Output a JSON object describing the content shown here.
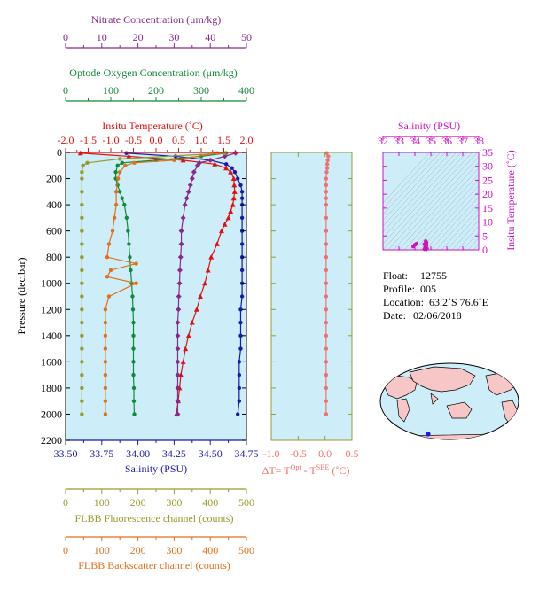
{
  "colors": {
    "plot_bg": "#cdeef8",
    "nitrate": "#882a8a",
    "oxygen": "#13893a",
    "temperature": "#e01010",
    "salinity": "#1a1aa8",
    "fluorescence": "#9a9a2c",
    "backscatter": "#e0701c",
    "delta_t": "#f07070",
    "ts_axis": "#d010c0",
    "land": "#f7c7c7"
  },
  "chart_data": [
    {
      "type": "line",
      "name": "main-profile-panel",
      "ylabel": "Pressure (decibar)",
      "ylim": [
        2200,
        0
      ],
      "y_ticks": [
        "0",
        "200",
        "400",
        "600",
        "800",
        "1000",
        "1200",
        "1400",
        "1600",
        "1800",
        "2000",
        "2200"
      ],
      "axes": {
        "nitrate": {
          "label": "Nitrate Concentration (μm/kg)",
          "range": [
            0,
            50
          ],
          "ticks": [
            "0",
            "10",
            "20",
            "30",
            "40",
            "50"
          ]
        },
        "oxygen": {
          "label": "Optode Oxygen Concentration (μm/kg)",
          "range": [
            0,
            400
          ],
          "ticks": [
            "0",
            "100",
            "200",
            "300",
            "400"
          ]
        },
        "temperature": {
          "label": "Insitu Temperature (˚C)",
          "range": [
            -2.0,
            2.0
          ],
          "ticks": [
            "-2.0",
            "-1.5",
            "-1.0",
            "-0.5",
            "0.0",
            "0.5",
            "1.0",
            "1.5",
            "2.0"
          ]
        },
        "salinity": {
          "label": "Salinity (PSU)",
          "range": [
            33.5,
            34.75
          ],
          "ticks": [
            "33.50",
            "33.75",
            "34.00",
            "34.25",
            "34.50",
            "34.75"
          ]
        },
        "fluorescence": {
          "label": "FLBB Fluorescence channel (counts)",
          "range": [
            0,
            500
          ],
          "ticks": [
            "0",
            "100",
            "200",
            "300",
            "400",
            "500"
          ]
        },
        "backscatter": {
          "label": "FLBB Backscatter channel (counts)",
          "range": [
            0,
            500
          ],
          "ticks": [
            "0",
            "100",
            "200",
            "300",
            "400",
            "500"
          ]
        }
      },
      "series": [
        {
          "axis": "salinity",
          "marker": "circle",
          "pressure": [
            5,
            30,
            60,
            90,
            120,
            150,
            200,
            250,
            300,
            350,
            400,
            500,
            600,
            700,
            800,
            900,
            1000,
            1100,
            1200,
            1300,
            1400,
            1500,
            1600,
            1700,
            1800,
            1900,
            2000
          ],
          "values": [
            33.92,
            34.26,
            34.5,
            34.61,
            34.65,
            34.67,
            34.69,
            34.71,
            34.72,
            34.72,
            34.72,
            34.72,
            34.72,
            34.72,
            34.72,
            34.72,
            34.72,
            34.72,
            34.71,
            34.71,
            34.71,
            34.71,
            34.7,
            34.7,
            34.7,
            34.7,
            34.69
          ]
        },
        {
          "axis": "temperature",
          "marker": "triangle",
          "pressure": [
            5,
            30,
            60,
            90,
            120,
            150,
            200,
            250,
            300,
            350,
            400,
            450,
            500,
            550,
            600,
            700,
            800,
            900,
            1000,
            1100,
            1200,
            1300,
            1400,
            1500,
            1600,
            1700,
            1800,
            1900,
            2000
          ],
          "values": [
            -1.67,
            -0.6,
            0.6,
            1.3,
            1.55,
            1.65,
            1.72,
            1.73,
            1.74,
            1.72,
            1.7,
            1.65,
            1.6,
            1.52,
            1.45,
            1.35,
            1.22,
            1.15,
            1.08,
            0.98,
            0.9,
            0.8,
            0.72,
            0.65,
            0.6,
            0.55,
            0.52,
            0.49,
            0.45
          ]
        },
        {
          "axis": "oxygen",
          "marker": "circle",
          "pressure": [
            5,
            30,
            60,
            80,
            100,
            150,
            200,
            250,
            300,
            350,
            400,
            500,
            600,
            700,
            800,
            900,
            1000,
            1100,
            1200,
            1300,
            1400,
            1500,
            1600,
            1700,
            1800,
            1900,
            2000
          ],
          "values": [
            355,
            300,
            200,
            125,
            115,
            111,
            111,
            115,
            120,
            125,
            130,
            135,
            138,
            140,
            142,
            144,
            146,
            148,
            149,
            150,
            150,
            150,
            150,
            150,
            151,
            151,
            152
          ]
        },
        {
          "axis": "nitrate",
          "marker": "diamond",
          "pressure": [
            5,
            30,
            60,
            80,
            100,
            150,
            200,
            250,
            300,
            350,
            400,
            500,
            600,
            700,
            800,
            900,
            1000,
            1100,
            1200,
            1300,
            1400,
            1500,
            1600,
            1700,
            1800,
            1900,
            2000
          ],
          "values": [
            47,
            44,
            40,
            37,
            36.5,
            35.5,
            35,
            34.5,
            34,
            33.5,
            33,
            32.5,
            32,
            32,
            31.8,
            31.6,
            31.5,
            31.3,
            31.2,
            31,
            31,
            31,
            31,
            31,
            31,
            31,
            31
          ]
        },
        {
          "axis": "fluorescence",
          "marker": "circle",
          "pressure": [
            5,
            50,
            80,
            100,
            150,
            200,
            300,
            400,
            500,
            600,
            700,
            800,
            900,
            1000,
            1100,
            1200,
            1300,
            1400,
            1500,
            1600,
            1700,
            1800,
            1900,
            2000
          ],
          "values": [
            440,
            150,
            60,
            48,
            45,
            45,
            45,
            45,
            45,
            45,
            45,
            45,
            45,
            45,
            45,
            45,
            45,
            45,
            45,
            45,
            45,
            45,
            45,
            45
          ]
        },
        {
          "axis": "backscatter",
          "marker": "circle",
          "pressure": [
            5,
            60,
            80,
            100,
            150,
            200,
            300,
            400,
            500,
            600,
            700,
            800,
            850,
            900,
            950,
            1000,
            1100,
            1200,
            1300,
            1400,
            1500,
            1600,
            1700,
            1800,
            1900,
            2000
          ],
          "values": [
            420,
            300,
            190,
            165,
            150,
            145,
            140,
            140,
            135,
            130,
            120,
            115,
            195,
            125,
            115,
            195,
            120,
            110,
            110,
            110,
            110,
            110,
            110,
            110,
            110,
            110
          ]
        }
      ]
    },
    {
      "type": "line",
      "name": "delta-t-panel",
      "xlabel_prefix": "ΔT= T",
      "xlabel_sup1": "Opt",
      "xlabel_mid": " - T",
      "xlabel_sup2": "SBE",
      "xlabel_suffix": " (˚C)",
      "xlim": [
        -1.0,
        0.5
      ],
      "x_ticks": [
        "-1.0",
        "-0.5",
        "0.0",
        "0.5"
      ],
      "ylim": [
        2200,
        0
      ],
      "pressure": [
        5,
        30,
        60,
        90,
        120,
        150,
        200,
        250,
        300,
        350,
        400,
        500,
        600,
        700,
        800,
        900,
        1000,
        1100,
        1200,
        1300,
        1400,
        1500,
        1600,
        1700,
        1800,
        1900,
        2000
      ],
      "values": [
        0.03,
        0.06,
        0.05,
        0.04,
        0.04,
        0.03,
        0.02,
        0.02,
        0.02,
        0.02,
        0.02,
        0.02,
        0.02,
        0.02,
        0.02,
        0.02,
        0.02,
        0.02,
        0.02,
        0.02,
        0.02,
        0.02,
        0.02,
        0.02,
        0.02,
        0.02,
        0.02
      ]
    },
    {
      "type": "scatter",
      "name": "ts-diagram",
      "xlabel": "Salinity (PSU)",
      "ylabel": "Insitu Temperature (˚C)",
      "xlim": [
        32,
        38
      ],
      "ylim": [
        0,
        35
      ],
      "x_ticks": [
        "32",
        "33",
        "34",
        "35",
        "36",
        "37",
        "38"
      ],
      "y_ticks": [
        "0",
        "5",
        "10",
        "15",
        "20",
        "25",
        "30",
        "35"
      ],
      "points": [
        [
          33.9,
          1.2
        ],
        [
          34.0,
          1.8
        ],
        [
          34.1,
          2.2
        ],
        [
          34.6,
          0.3
        ],
        [
          34.65,
          0.8
        ],
        [
          34.7,
          1.4
        ],
        [
          34.72,
          1.8
        ],
        [
          34.72,
          2.6
        ],
        [
          34.68,
          3.1
        ],
        [
          34.6,
          2.0
        ],
        [
          34.75,
          0.5
        ],
        [
          34.7,
          0.2
        ]
      ]
    }
  ],
  "info": {
    "float_label": "Float:",
    "float_value": "12755",
    "profile_label": "Profile:",
    "profile_value": "005",
    "location_label": "Location:",
    "location_value": "63.2˚S  76.6˚E",
    "date_label": "Date:",
    "date_value": "02/06/2018"
  },
  "map": {
    "marker_lat": -63.2,
    "marker_lon": 76.6
  }
}
